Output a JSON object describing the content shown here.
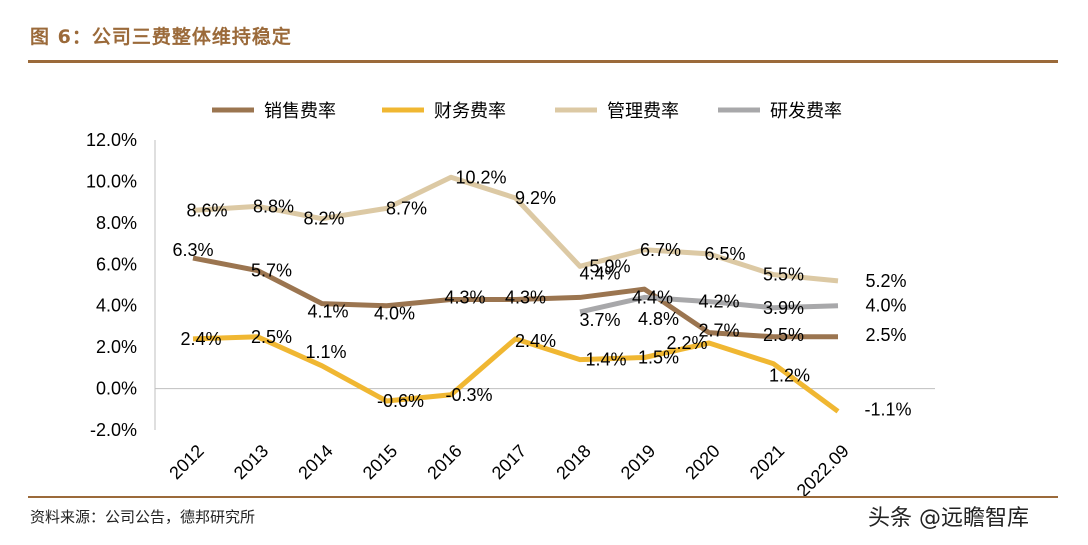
{
  "header": {
    "title": "图 6：公司三费整体维持稳定"
  },
  "footer": {
    "source": "资料来源：公司公告，德邦研究所",
    "watermark": "头条 @远瞻智库"
  },
  "chart_data": {
    "type": "line",
    "categories": [
      "2012",
      "2013",
      "2014",
      "2015",
      "2016",
      "2017",
      "2018",
      "2019",
      "2020",
      "2021",
      "2022.09"
    ],
    "ylim": [
      -2,
      12
    ],
    "yticks": [
      "-2.0%",
      "0.0%",
      "2.0%",
      "4.0%",
      "6.0%",
      "8.0%",
      "10.0%",
      "12.0%"
    ],
    "legend_position": "top",
    "grid": false,
    "series": [
      {
        "name": "销售费率",
        "color": "#9b7550",
        "values": [
          6.3,
          5.7,
          4.1,
          4.0,
          4.3,
          4.3,
          4.4,
          4.8,
          2.7,
          2.5,
          2.5
        ],
        "labels": [
          "6.3%",
          "5.7%",
          "4.1%",
          "4.0%",
          "4.3%",
          "4.3%",
          "4.4%",
          "4.8%",
          "2.7%",
          "2.5%",
          "2.5%"
        ]
      },
      {
        "name": "财务费率",
        "color": "#f0b732",
        "values": [
          2.4,
          2.5,
          1.1,
          -0.6,
          -0.3,
          2.4,
          1.4,
          1.5,
          2.2,
          1.2,
          -1.1
        ],
        "labels": [
          "2.4%",
          "2.5%",
          "1.1%",
          "-0.6%",
          "-0.3%",
          "2.4%",
          "1.4%",
          "1.5%",
          "2.2%",
          "1.2%",
          "-1.1%"
        ]
      },
      {
        "name": "管理费率",
        "color": "#dcc9a4",
        "values": [
          8.6,
          8.8,
          8.2,
          8.7,
          10.2,
          9.2,
          5.9,
          6.7,
          6.5,
          5.5,
          5.2
        ],
        "labels": [
          "8.6%",
          "8.8%",
          "8.2%",
          "8.7%",
          "10.2%",
          "9.2%",
          "5.9%",
          "6.7%",
          "6.5%",
          "5.5%",
          "5.2%"
        ]
      },
      {
        "name": "研发费率",
        "color": "#a8a8aa",
        "values": [
          null,
          null,
          null,
          null,
          null,
          null,
          3.7,
          4.4,
          4.2,
          3.9,
          4.0
        ],
        "labels": [
          null,
          null,
          null,
          null,
          null,
          null,
          "3.7%",
          "4.4%",
          "4.2%",
          "3.9%",
          "4.0%"
        ]
      }
    ]
  }
}
